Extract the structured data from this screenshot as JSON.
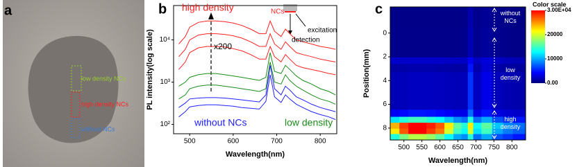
{
  "chart_data": [
    {
      "type": "image",
      "panel_label": "a",
      "annotations": [
        {
          "text": "low density NCs",
          "color": "#9acd32"
        },
        {
          "text": "high density NCs",
          "color": "#ff2020"
        },
        {
          "text": "without NCs",
          "color": "#3a7bd5"
        }
      ]
    },
    {
      "type": "line",
      "panel_label": "b",
      "xlabel": "Wavelength(nm)",
      "ylabel": "PL intensity(log scale)",
      "log_y": true,
      "x": [
        475,
        490,
        500,
        520,
        540,
        560,
        580,
        600,
        620,
        640,
        660,
        675,
        685,
        695,
        710,
        720,
        730,
        745,
        760,
        780,
        800,
        820,
        835
      ],
      "xlim": [
        463,
        838
      ],
      "xticks": [
        500,
        600,
        700,
        800
      ],
      "ylim": [
        60,
        65000
      ],
      "yticks": [
        {
          "value": 100,
          "label": "10²"
        },
        {
          "value": 1000,
          "label": "10³"
        },
        {
          "value": 10000,
          "label": "10⁴"
        }
      ],
      "series": [
        {
          "color": "#ff2020",
          "values": [
            8000,
            12000,
            20000,
            26000,
            28000,
            28000,
            27000,
            25000,
            22000,
            18000,
            14000,
            14000,
            28000,
            16000,
            12000,
            18000,
            14000,
            10000,
            9000,
            8000,
            7000,
            6500,
            6000
          ]
        },
        {
          "color": "#ff2020",
          "values": [
            4000,
            6000,
            10000,
            13000,
            14000,
            14000,
            13500,
            12500,
            11000,
            9000,
            7000,
            7000,
            14000,
            8000,
            6000,
            9000,
            7000,
            5000,
            4500,
            4000,
            3500,
            3200,
            3000
          ]
        },
        {
          "color": "#ff2020",
          "values": [
            2000,
            3000,
            5000,
            6500,
            7000,
            7000,
            6800,
            6200,
            5500,
            4500,
            3500,
            3500,
            7000,
            4000,
            3000,
            4500,
            3500,
            2500,
            2200,
            2000,
            1800,
            1600,
            1500
          ]
        },
        {
          "color": "#1a8c1a",
          "values": [
            800,
            1000,
            1300,
            1500,
            1600,
            1600,
            1500,
            1400,
            1300,
            1200,
            1100,
            1300,
            5000,
            1800,
            1600,
            2500,
            2000,
            1400,
            1100,
            900,
            700,
            600,
            500
          ]
        },
        {
          "color": "#1a8c1a",
          "values": [
            400,
            500,
            700,
            800,
            850,
            850,
            800,
            750,
            700,
            650,
            600,
            700,
            3000,
            1000,
            900,
            1500,
            1100,
            800,
            650,
            500,
            400,
            350,
            300
          ]
        },
        {
          "color": "#2020ff",
          "values": [
            250,
            320,
            400,
            420,
            430,
            430,
            420,
            400,
            380,
            360,
            340,
            500,
            2500,
            700,
            500,
            800,
            650,
            450,
            380,
            300,
            250,
            220,
            200
          ]
        },
        {
          "color": "#2020ff",
          "values": [
            150,
            200,
            260,
            280,
            290,
            290,
            280,
            270,
            250,
            240,
            230,
            350,
            1500,
            450,
            330,
            500,
            400,
            300,
            250,
            200,
            170,
            150,
            130
          ]
        }
      ],
      "annotations": [
        {
          "text": "high density",
          "color": "#ff2020"
        },
        {
          "text": "x200",
          "color": "#000000"
        },
        {
          "text": "NCs",
          "color": "#ff2020"
        },
        {
          "text": "excitation",
          "color": "#000000"
        },
        {
          "text": "detection",
          "color": "#000000"
        },
        {
          "text": "without NCs",
          "color": "#2020ff"
        },
        {
          "text": "low density",
          "color": "#1a8c1a"
        }
      ]
    },
    {
      "type": "heatmap",
      "panel_label": "c",
      "xlabel": "Wavelength(nm)",
      "ylabel": "Position(mm)",
      "x": [
        475,
        500,
        525,
        550,
        575,
        600,
        625,
        650,
        670,
        685,
        700,
        730,
        760,
        790,
        815
      ],
      "y": [
        -1.8,
        -0.9,
        0,
        0.9,
        1.8,
        2.3,
        2.9,
        3.7,
        4.5,
        5.3,
        6.1,
        6.8,
        7.3,
        7.8,
        8.3,
        8.7
      ],
      "z": [
        [
          300,
          300,
          300,
          300,
          300,
          300,
          300,
          300,
          400,
          1500,
          500,
          800,
          400,
          300,
          200
        ],
        [
          300,
          300,
          300,
          300,
          300,
          300,
          300,
          300,
          400,
          1500,
          500,
          800,
          400,
          300,
          200
        ],
        [
          400,
          400,
          400,
          400,
          400,
          400,
          400,
          400,
          500,
          1800,
          600,
          1000,
          500,
          400,
          300
        ],
        [
          400,
          400,
          400,
          400,
          400,
          400,
          400,
          400,
          500,
          1800,
          600,
          1000,
          500,
          400,
          300
        ],
        [
          400,
          400,
          400,
          400,
          400,
          400,
          400,
          400,
          500,
          1800,
          600,
          1000,
          500,
          400,
          300
        ],
        [
          2500,
          2500,
          2500,
          2500,
          2500,
          2500,
          2400,
          2300,
          2300,
          4000,
          2300,
          3000,
          2300,
          2000,
          1800
        ],
        [
          1200,
          1400,
          1500,
          1500,
          1500,
          1400,
          1300,
          1200,
          1300,
          5000,
          1500,
          2800,
          1300,
          1100,
          1000
        ],
        [
          1800,
          2000,
          2200,
          2200,
          2200,
          2100,
          2000,
          1900,
          2000,
          6000,
          2200,
          3500,
          2000,
          1700,
          1500
        ],
        [
          1800,
          2000,
          2200,
          2200,
          2200,
          2100,
          2000,
          1900,
          2000,
          6000,
          2200,
          3500,
          2000,
          1700,
          1500
        ],
        [
          1800,
          2000,
          2200,
          2200,
          2200,
          2100,
          2000,
          1900,
          2000,
          6000,
          2200,
          3500,
          2000,
          1700,
          1500
        ],
        [
          1800,
          2000,
          2200,
          2200,
          2200,
          2100,
          2000,
          1900,
          2000,
          6000,
          2200,
          3500,
          2000,
          1700,
          1500
        ],
        [
          4000,
          4500,
          5000,
          5000,
          4800,
          4500,
          4000,
          3500,
          3500,
          8000,
          3500,
          5000,
          3200,
          2800,
          2500
        ],
        [
          12000,
          14000,
          15000,
          15000,
          14000,
          13000,
          11000,
          9000,
          8000,
          14000,
          8000,
          10000,
          7000,
          6000,
          5000
        ],
        [
          24000,
          28000,
          30000,
          30000,
          29000,
          27000,
          22000,
          16000,
          14000,
          22000,
          13000,
          16000,
          11000,
          9000,
          8000
        ],
        [
          22000,
          27000,
          30000,
          30000,
          28000,
          26000,
          20000,
          15000,
          13000,
          20000,
          12000,
          15000,
          10000,
          8500,
          7500
        ],
        [
          14000,
          17000,
          19000,
          19000,
          18000,
          16000,
          13000,
          10000,
          9000,
          14000,
          8000,
          10000,
          7000,
          6000,
          5000
        ]
      ],
      "xlim": [
        462,
        838
      ],
      "xticks": [
        500,
        550,
        600,
        650,
        700,
        750,
        800
      ],
      "ylim": [
        -2.2,
        9.0
      ],
      "y_reversed": true,
      "yticks": [
        0,
        2,
        4,
        6,
        8
      ],
      "colorbar_title": "Color scale",
      "zlim": [
        0,
        30000
      ],
      "zticks": [
        {
          "value": 30000,
          "label": "3.00E+04"
        },
        20000,
        10000,
        {
          "value": 0,
          "label": "0.00"
        }
      ],
      "colormap": [
        "#00007f",
        "#0000ff",
        "#007fff",
        "#00ffff",
        "#7fff7f",
        "#ffff00",
        "#ff7f00",
        "#ff0000"
      ],
      "annotations": [
        {
          "text": "without NCs",
          "color": "#ffffff"
        },
        {
          "text": "low density",
          "color": "#ffffff"
        },
        {
          "text": "high density",
          "color": "#ffffff"
        }
      ]
    }
  ]
}
